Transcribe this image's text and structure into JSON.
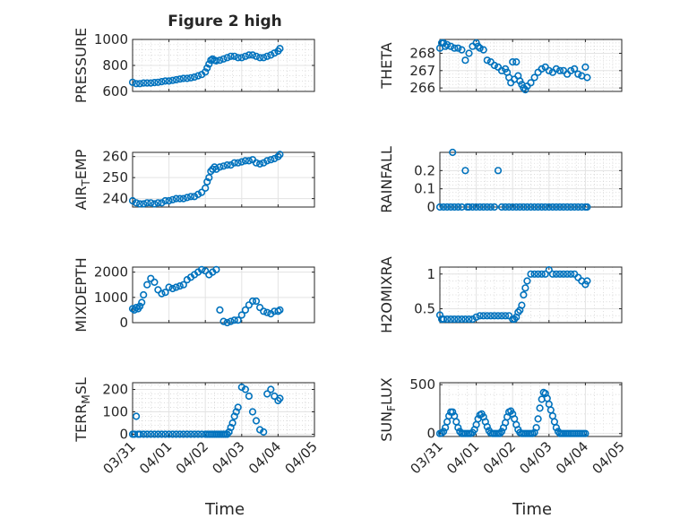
{
  "figure": {
    "title": "Figure 2 high",
    "colors": {
      "marker": "#0072bd",
      "axis": "#262626",
      "grid": "#e3e3e3",
      "background": "#ffffff"
    }
  },
  "chart_data": [
    {
      "type": "scatter",
      "ylabel": "PRESSURE",
      "title": "Figure 2 high",
      "xlim": [
        0,
        5
      ],
      "ylim": [
        600,
        1000
      ],
      "yticks": [
        600,
        800,
        1000
      ],
      "grid": true,
      "minor_grid": true,
      "x": [
        0,
        0.1,
        0.2,
        0.3,
        0.4,
        0.5,
        0.6,
        0.7,
        0.8,
        0.9,
        1.0,
        1.1,
        1.2,
        1.3,
        1.4,
        1.5,
        1.6,
        1.7,
        1.8,
        1.9,
        2.0,
        2.05,
        2.1,
        2.15,
        2.2,
        2.25,
        2.3,
        2.4,
        2.5,
        2.6,
        2.7,
        2.8,
        2.9,
        3.0,
        3.1,
        3.2,
        3.3,
        3.4,
        3.5,
        3.6,
        3.7,
        3.8,
        3.9,
        4.0,
        4.05
      ],
      "y": [
        670,
        660,
        660,
        665,
        665,
        665,
        668,
        670,
        675,
        680,
        680,
        685,
        690,
        695,
        700,
        700,
        705,
        710,
        720,
        730,
        750,
        780,
        810,
        840,
        850,
        840,
        835,
        840,
        850,
        860,
        870,
        870,
        860,
        860,
        870,
        880,
        880,
        870,
        860,
        860,
        870,
        880,
        895,
        910,
        930
      ]
    },
    {
      "type": "scatter",
      "ylabel": "THETA",
      "xlim": [
        0,
        5
      ],
      "ylim": [
        265.8,
        268.8
      ],
      "yticks": [
        266,
        267,
        268
      ],
      "grid": true,
      "minor_grid": true,
      "x": [
        0,
        0.05,
        0.1,
        0.15,
        0.2,
        0.3,
        0.4,
        0.5,
        0.6,
        0.7,
        0.8,
        0.9,
        1.0,
        1.05,
        1.1,
        1.2,
        1.3,
        1.4,
        1.5,
        1.6,
        1.7,
        1.8,
        1.85,
        1.9,
        1.95,
        2.0,
        2.05,
        2.1,
        2.15,
        2.2,
        2.25,
        2.3,
        2.35,
        2.4,
        2.5,
        2.6,
        2.7,
        2.8,
        2.9,
        3.0,
        3.1,
        3.2,
        3.3,
        3.4,
        3.5,
        3.6,
        3.7,
        3.8,
        3.9,
        4.0,
        4.05
      ],
      "y": [
        268.3,
        268.6,
        268.6,
        268.4,
        268.5,
        268.4,
        268.3,
        268.3,
        268.2,
        267.6,
        268.0,
        268.4,
        268.6,
        268.4,
        268.3,
        268.2,
        267.6,
        267.5,
        267.3,
        267.2,
        267.0,
        267.1,
        266.9,
        266.6,
        266.3,
        267.5,
        266.5,
        267.5,
        266.7,
        266.4,
        266.2,
        266.0,
        265.9,
        266.1,
        266.3,
        266.6,
        266.9,
        267.1,
        267.2,
        267.0,
        266.9,
        267.1,
        267.0,
        267.0,
        266.8,
        267.0,
        267.1,
        266.8,
        266.7,
        267.2,
        266.6
      ]
    },
    {
      "type": "scatter",
      "ylabel": "AIR_TEMP",
      "xlim": [
        0,
        5
      ],
      "ylim": [
        236,
        262
      ],
      "yticks": [
        240,
        250,
        260
      ],
      "grid": true,
      "minor_grid": false,
      "x": [
        0,
        0.1,
        0.2,
        0.3,
        0.4,
        0.5,
        0.6,
        0.7,
        0.8,
        0.9,
        1.0,
        1.1,
        1.2,
        1.3,
        1.4,
        1.5,
        1.6,
        1.7,
        1.8,
        1.9,
        2.0,
        2.05,
        2.1,
        2.15,
        2.2,
        2.25,
        2.3,
        2.4,
        2.5,
        2.6,
        2.7,
        2.8,
        2.9,
        3.0,
        3.1,
        3.2,
        3.3,
        3.4,
        3.5,
        3.6,
        3.7,
        3.8,
        3.9,
        4.0,
        4.05
      ],
      "y": [
        239,
        238,
        237.5,
        237.5,
        238,
        238,
        237.5,
        238,
        238,
        239,
        239,
        239.5,
        240,
        240,
        240,
        240.5,
        241,
        241,
        242,
        243,
        245,
        248,
        250,
        253,
        254,
        255,
        254,
        255,
        255.5,
        256,
        256,
        257,
        257,
        257.5,
        258,
        258,
        258.5,
        257,
        256.5,
        257,
        258,
        258.5,
        259,
        260,
        261
      ]
    },
    {
      "type": "scatter",
      "ylabel": "RAINFALL",
      "xlim": [
        0,
        5
      ],
      "ylim": [
        0,
        0.3
      ],
      "yticks": [
        0,
        0.1,
        0.2
      ],
      "grid": true,
      "minor_grid": true,
      "x": [
        0,
        0.1,
        0.2,
        0.3,
        0.35,
        0.4,
        0.5,
        0.6,
        0.7,
        0.75,
        0.8,
        0.9,
        1.0,
        1.1,
        1.2,
        1.3,
        1.4,
        1.5,
        1.6,
        1.7,
        1.8,
        1.9,
        2.0,
        2.1,
        2.2,
        2.3,
        2.4,
        2.5,
        2.6,
        2.7,
        2.8,
        2.9,
        3.0,
        3.1,
        3.2,
        3.3,
        3.4,
        3.5,
        3.6,
        3.7,
        3.8,
        3.9,
        4.0,
        4.05
      ],
      "y": [
        0,
        0,
        0,
        0,
        0.3,
        0,
        0,
        0,
        0.2,
        0,
        0,
        0,
        0,
        0,
        0,
        0,
        0,
        0,
        0.2,
        0,
        0,
        0,
        0,
        0,
        0,
        0,
        0,
        0,
        0,
        0,
        0,
        0,
        0,
        0,
        0,
        0,
        0,
        0,
        0,
        0,
        0,
        0,
        0,
        0
      ]
    },
    {
      "type": "scatter",
      "ylabel": "MIXDEPTH",
      "xlim": [
        0,
        5
      ],
      "ylim": [
        0,
        2200
      ],
      "yticks": [
        0,
        1000,
        2000
      ],
      "grid": true,
      "minor_grid": false,
      "x": [
        0,
        0.05,
        0.1,
        0.15,
        0.2,
        0.25,
        0.3,
        0.4,
        0.5,
        0.6,
        0.7,
        0.8,
        0.9,
        1.0,
        1.1,
        1.2,
        1.3,
        1.4,
        1.5,
        1.6,
        1.7,
        1.8,
        1.9,
        2.0,
        2.1,
        2.2,
        2.3,
        2.4,
        2.5,
        2.6,
        2.7,
        2.8,
        2.9,
        3.0,
        3.1,
        3.2,
        3.3,
        3.4,
        3.5,
        3.6,
        3.7,
        3.8,
        3.9,
        4.0,
        4.05
      ],
      "y": [
        550,
        500,
        600,
        550,
        650,
        800,
        1100,
        1500,
        1750,
        1600,
        1300,
        1150,
        1200,
        1400,
        1350,
        1400,
        1450,
        1500,
        1700,
        1800,
        1900,
        2000,
        2100,
        2050,
        1900,
        2000,
        2100,
        500,
        50,
        0,
        50,
        100,
        100,
        300,
        500,
        700,
        850,
        850,
        600,
        450,
        400,
        350,
        450,
        450,
        500
      ]
    },
    {
      "type": "scatter",
      "ylabel": "H2OMIXRA",
      "xlim": [
        0,
        5
      ],
      "ylim": [
        0.3,
        1.1
      ],
      "yticks": [
        0.5,
        1
      ],
      "grid": true,
      "minor_grid": true,
      "x": [
        0,
        0.05,
        0.1,
        0.2,
        0.3,
        0.4,
        0.5,
        0.6,
        0.7,
        0.8,
        0.9,
        1.0,
        1.1,
        1.2,
        1.3,
        1.4,
        1.5,
        1.6,
        1.7,
        1.8,
        1.9,
        2.0,
        2.05,
        2.1,
        2.15,
        2.2,
        2.25,
        2.3,
        2.35,
        2.4,
        2.5,
        2.6,
        2.7,
        2.8,
        2.9,
        3.0,
        3.1,
        3.2,
        3.3,
        3.4,
        3.5,
        3.6,
        3.7,
        3.8,
        3.9,
        4.0,
        4.05
      ],
      "y": [
        0.41,
        0.35,
        0.35,
        0.35,
        0.35,
        0.35,
        0.35,
        0.35,
        0.35,
        0.35,
        0.35,
        0.38,
        0.4,
        0.4,
        0.4,
        0.4,
        0.4,
        0.4,
        0.4,
        0.4,
        0.4,
        0.35,
        0.35,
        0.38,
        0.45,
        0.48,
        0.55,
        0.7,
        0.8,
        0.9,
        1.0,
        1.0,
        1.0,
        1.0,
        1.0,
        1.06,
        1.0,
        1.0,
        1.0,
        1.0,
        1.0,
        1.0,
        1.0,
        0.95,
        0.9,
        0.85,
        0.9
      ]
    },
    {
      "type": "scatter",
      "ylabel": "TERR_MSL",
      "xlim": [
        0,
        5
      ],
      "ylim": [
        -10,
        230
      ],
      "yticks": [
        0,
        100,
        200
      ],
      "grid": true,
      "minor_grid": true,
      "x": [
        0,
        0.05,
        0.1,
        0.15,
        0.2,
        0.3,
        0.4,
        0.5,
        0.6,
        0.7,
        0.8,
        0.9,
        1.0,
        1.1,
        1.2,
        1.3,
        1.4,
        1.5,
        1.6,
        1.7,
        1.8,
        1.9,
        2.0,
        2.05,
        2.1,
        2.15,
        2.2,
        2.25,
        2.3,
        2.35,
        2.4,
        2.45,
        2.5,
        2.55,
        2.6,
        2.65,
        2.7,
        2.75,
        2.8,
        2.85,
        2.9,
        3.0,
        3.1,
        3.2,
        3.3,
        3.4,
        3.5,
        3.6,
        3.7,
        3.8,
        3.9,
        4.0,
        4.05
      ],
      "y": [
        0,
        0,
        80,
        0,
        0,
        0,
        0,
        0,
        0,
        0,
        0,
        0,
        0,
        0,
        0,
        0,
        0,
        0,
        0,
        0,
        0,
        0,
        0,
        0,
        0,
        0,
        0,
        0,
        0,
        0,
        0,
        0,
        0,
        0,
        0,
        10,
        30,
        50,
        80,
        100,
        120,
        210,
        200,
        170,
        100,
        60,
        20,
        10,
        180,
        200,
        170,
        150,
        160
      ]
    },
    {
      "type": "scatter",
      "ylabel": "SUN_FLUX",
      "xlim": [
        0,
        5
      ],
      "ylim": [
        -30,
        520
      ],
      "yticks": [
        0,
        500
      ],
      "grid": true,
      "minor_grid": true,
      "x": [
        0,
        0.05,
        0.1,
        0.15,
        0.2,
        0.25,
        0.3,
        0.35,
        0.4,
        0.45,
        0.5,
        0.55,
        0.6,
        0.65,
        0.7,
        0.75,
        0.8,
        0.85,
        0.9,
        0.95,
        1.0,
        1.05,
        1.1,
        1.15,
        1.2,
        1.25,
        1.3,
        1.35,
        1.4,
        1.45,
        1.5,
        1.55,
        1.6,
        1.65,
        1.7,
        1.75,
        1.8,
        1.85,
        1.9,
        1.95,
        2.0,
        2.05,
        2.1,
        2.15,
        2.2,
        2.25,
        2.3,
        2.35,
        2.4,
        2.45,
        2.5,
        2.55,
        2.6,
        2.65,
        2.7,
        2.75,
        2.8,
        2.85,
        2.9,
        2.95,
        3.0,
        3.05,
        3.1,
        3.15,
        3.2,
        3.25,
        3.3,
        3.35,
        3.4,
        3.45,
        3.5,
        3.55,
        3.6,
        3.65,
        3.7,
        3.75,
        3.8,
        3.85,
        3.9,
        3.95,
        4.0
      ],
      "y": [
        0,
        5,
        20,
        60,
        120,
        180,
        220,
        220,
        180,
        120,
        60,
        20,
        0,
        0,
        0,
        0,
        0,
        0,
        10,
        40,
        90,
        150,
        190,
        200,
        170,
        120,
        70,
        30,
        5,
        0,
        0,
        0,
        0,
        0,
        20,
        60,
        110,
        170,
        220,
        230,
        200,
        150,
        90,
        40,
        10,
        0,
        0,
        0,
        0,
        0,
        0,
        0,
        10,
        60,
        150,
        260,
        350,
        420,
        410,
        360,
        300,
        240,
        180,
        120,
        60,
        20,
        0,
        0,
        0,
        0,
        0,
        0,
        0,
        0,
        0,
        0,
        0,
        0,
        0,
        0,
        0
      ]
    }
  ],
  "x_axis": {
    "tick_labels": [
      "03/31",
      "04/01",
      "04/02",
      "04/03",
      "04/04",
      "04/05"
    ],
    "label": "Time"
  }
}
